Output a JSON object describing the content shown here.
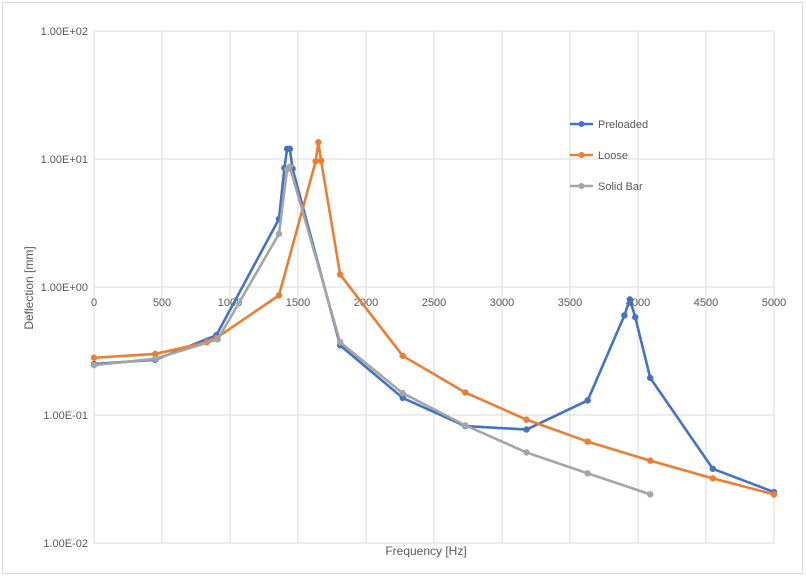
{
  "chart_data": {
    "type": "line",
    "title": "",
    "xlabel": "Frequency [Hz]",
    "ylabel": "Deflection [mm]",
    "xlim": [
      0,
      5000
    ],
    "ylim": [
      0.01,
      100
    ],
    "yscale": "log",
    "grid": true,
    "legend_position": "right-top-inside",
    "x_ticks": [
      {
        "value": 0,
        "label": "0"
      },
      {
        "value": 500,
        "label": "500"
      },
      {
        "value": 1000,
        "label": "1000"
      },
      {
        "value": 1500,
        "label": "1500"
      },
      {
        "value": 2000,
        "label": "2000"
      },
      {
        "value": 2500,
        "label": "2500"
      },
      {
        "value": 3000,
        "label": "3000"
      },
      {
        "value": 3500,
        "label": "3500"
      },
      {
        "value": 4000,
        "label": "4000"
      },
      {
        "value": 4500,
        "label": "4500"
      },
      {
        "value": 5000,
        "label": "5000"
      }
    ],
    "y_ticks": [
      {
        "value": 100,
        "label": "1.00E+02"
      },
      {
        "value": 10,
        "label": "1.00E+01"
      },
      {
        "value": 1,
        "label": "1.00E+00"
      },
      {
        "value": 0.1,
        "label": "1.00E-01"
      },
      {
        "value": 0.01,
        "label": "1.00E-02"
      }
    ],
    "series": [
      {
        "name": "Preloaded",
        "color": "#4472c4",
        "points": [
          [
            0,
            0.25
          ],
          [
            450,
            0.27
          ],
          [
            900,
            0.42
          ],
          [
            1360,
            3.4
          ],
          [
            1400,
            8.5
          ],
          [
            1420,
            12.0
          ],
          [
            1440,
            12.0
          ],
          [
            1460,
            8.4
          ],
          [
            1810,
            0.35
          ],
          [
            2270,
            0.136
          ],
          [
            2730,
            0.082
          ],
          [
            3180,
            0.077
          ],
          [
            3630,
            0.13
          ],
          [
            3900,
            0.6
          ],
          [
            3940,
            0.8
          ],
          [
            3980,
            0.58
          ],
          [
            4090,
            0.195
          ],
          [
            4550,
            0.038
          ],
          [
            5000,
            0.025
          ]
        ]
      },
      {
        "name": "Loose",
        "color": "#ed7d31",
        "points": [
          [
            0,
            0.28
          ],
          [
            450,
            0.3
          ],
          [
            830,
            0.37
          ],
          [
            900,
            0.4
          ],
          [
            1360,
            0.86
          ],
          [
            1630,
            9.6
          ],
          [
            1650,
            13.5
          ],
          [
            1670,
            9.7
          ],
          [
            1810,
            1.25
          ],
          [
            2270,
            0.29
          ],
          [
            2730,
            0.15
          ],
          [
            3180,
            0.092
          ],
          [
            3630,
            0.062
          ],
          [
            4090,
            0.044
          ],
          [
            4550,
            0.032
          ],
          [
            5000,
            0.024
          ]
        ]
      },
      {
        "name": "Solid Bar",
        "color": "#a5a5a5",
        "points": [
          [
            0,
            0.245
          ],
          [
            450,
            0.275
          ],
          [
            910,
            0.39
          ],
          [
            1360,
            2.6
          ],
          [
            1420,
            8.3
          ],
          [
            1440,
            8.7
          ],
          [
            1810,
            0.37
          ],
          [
            2270,
            0.148
          ],
          [
            2730,
            0.083
          ],
          [
            3180,
            0.051
          ],
          [
            3630,
            0.035
          ],
          [
            4090,
            0.024
          ]
        ]
      }
    ]
  }
}
